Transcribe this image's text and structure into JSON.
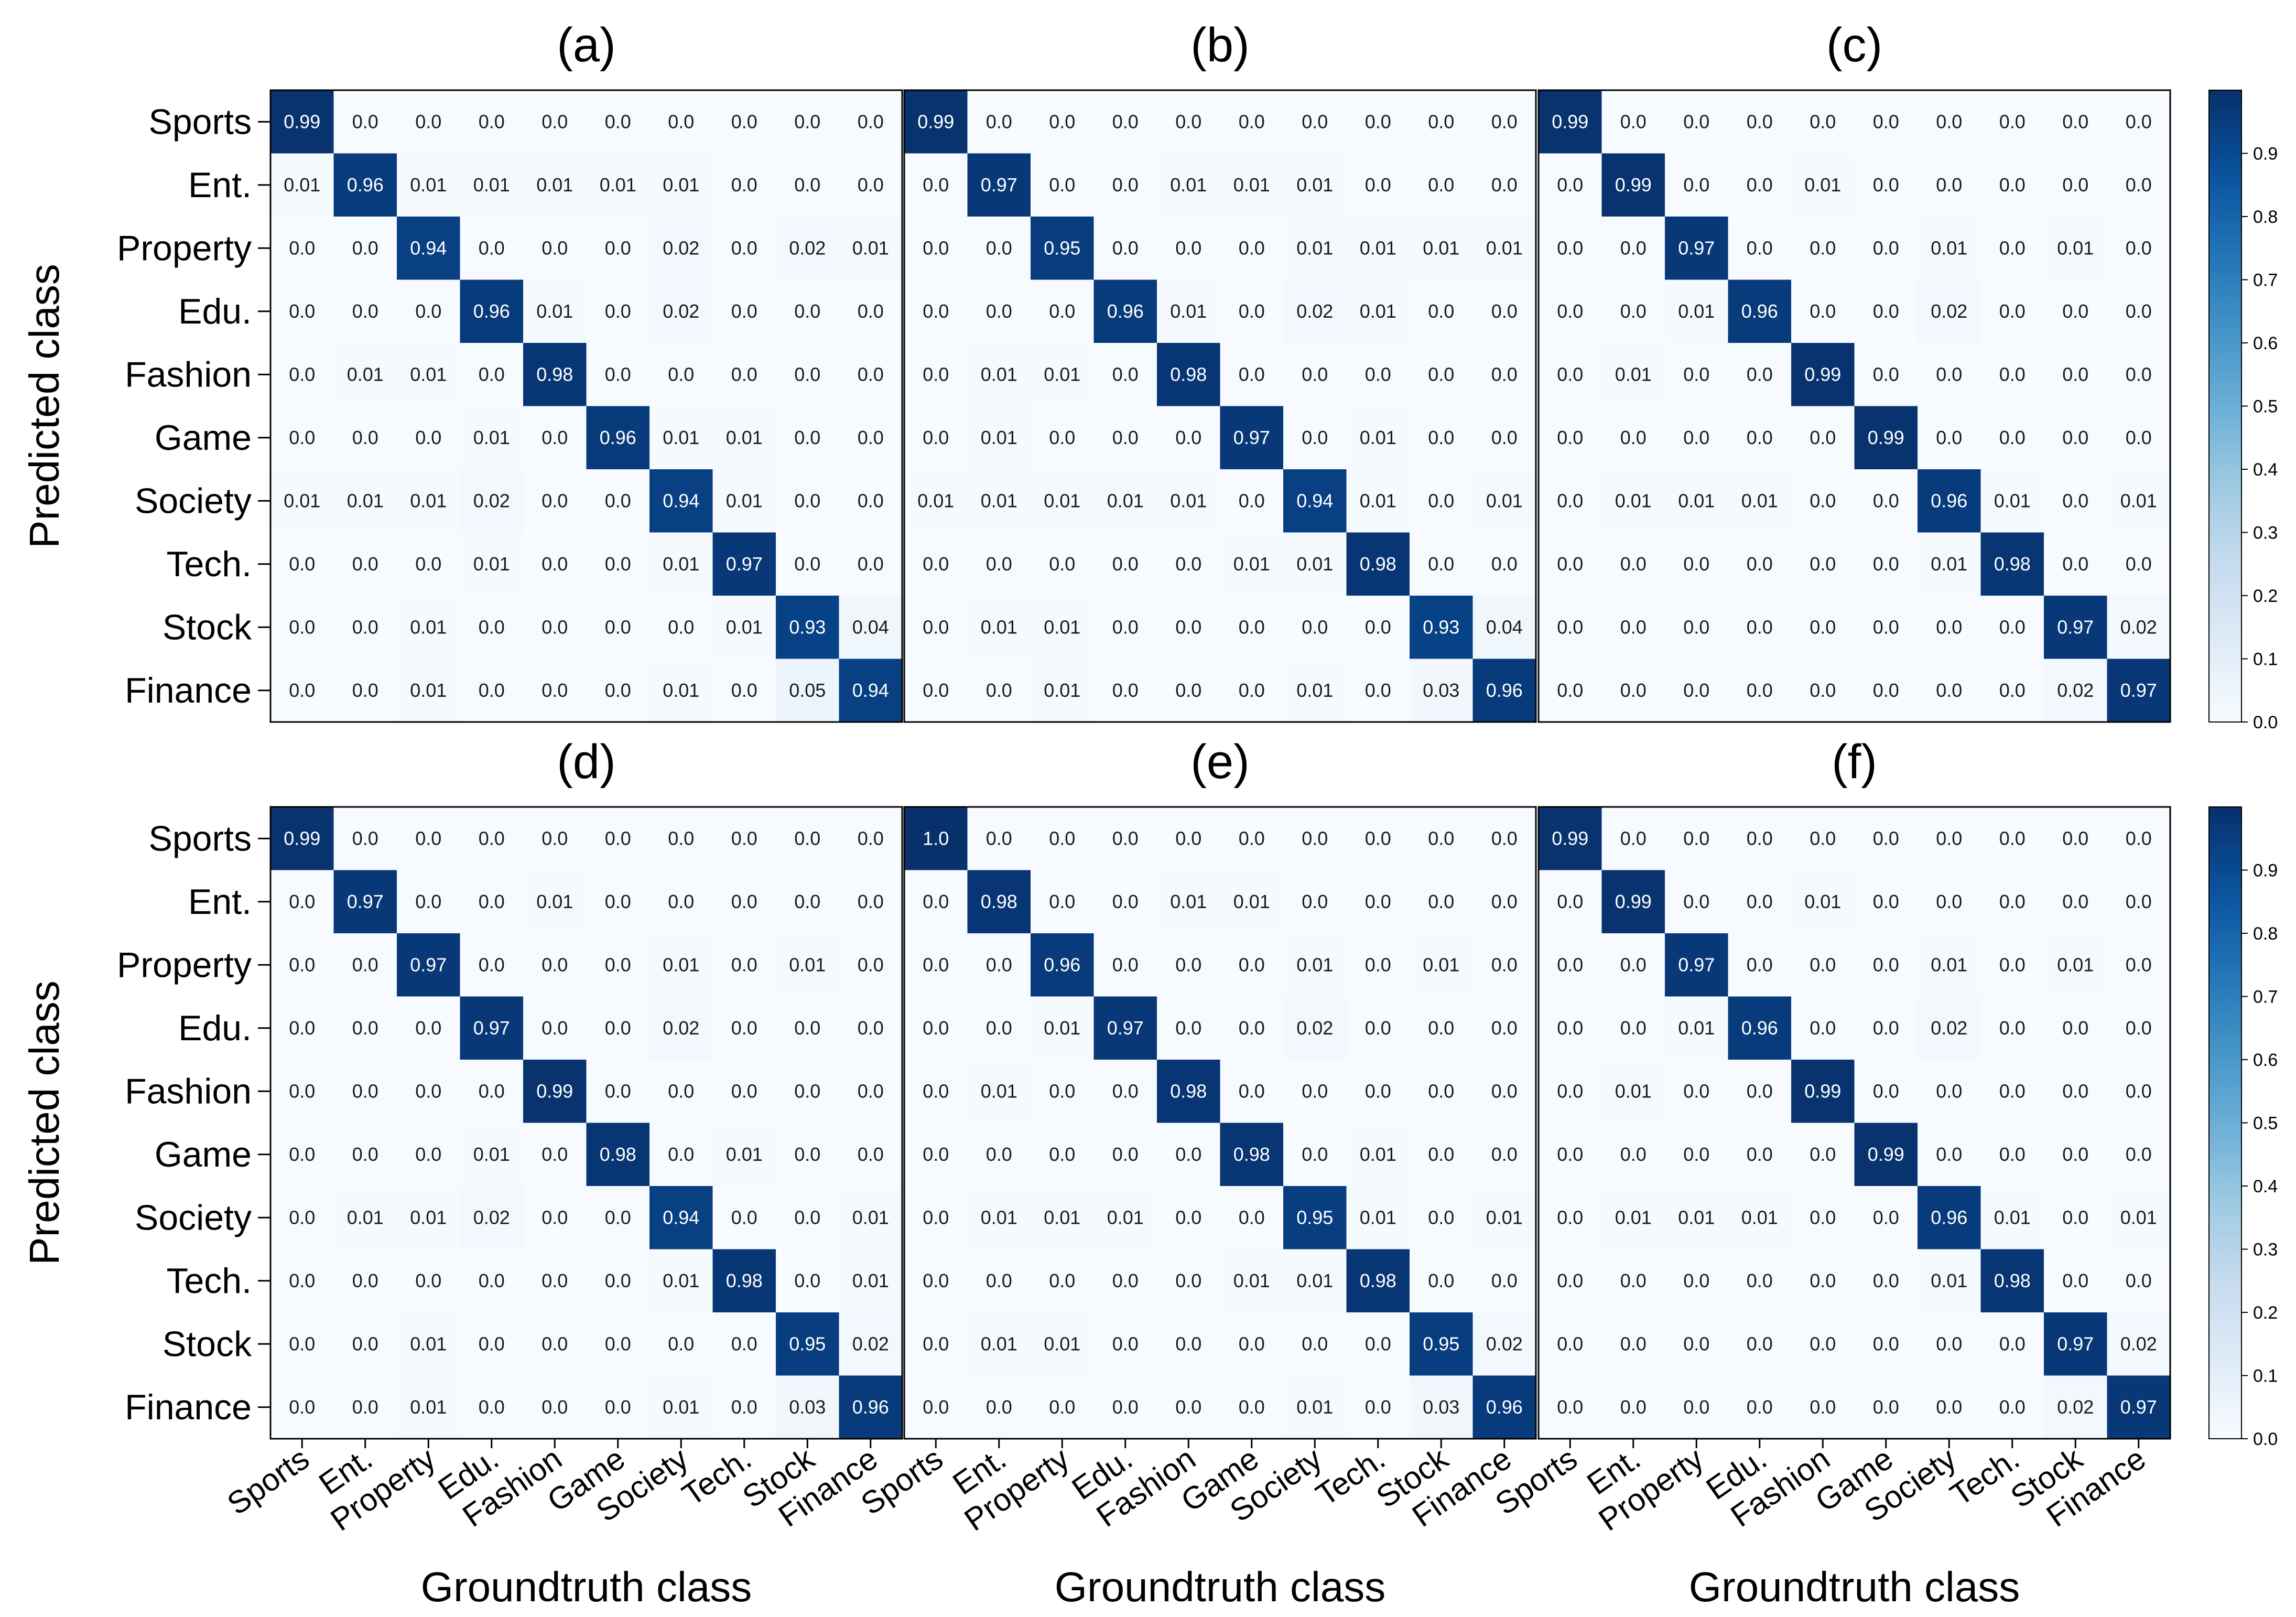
{
  "chart_data": {
    "type": "heatmap",
    "classes": [
      "Sports",
      "Ent.",
      "Property",
      "Edu.",
      "Fashion",
      "Game",
      "Society",
      "Tech.",
      "Stock",
      "Finance"
    ],
    "ylabel": "Predicted class",
    "xlabel": "Groundtruth class",
    "colorbar": {
      "range": [
        0.0,
        1.0
      ],
      "ticks": [
        "0.0",
        "0.1",
        "0.2",
        "0.3",
        "0.4",
        "0.5",
        "0.6",
        "0.7",
        "0.8",
        "0.9"
      ]
    },
    "colormap": {
      "low": "#f7fbff",
      "mid": "#6baed6",
      "high": "#08306b"
    },
    "panels": [
      {
        "title": "(a)",
        "matrix": [
          [
            "0.99",
            "0.0",
            "0.0",
            "0.0",
            "0.0",
            "0.0",
            "0.0",
            "0.0",
            "0.0",
            "0.0"
          ],
          [
            "0.01",
            "0.96",
            "0.01",
            "0.01",
            "0.01",
            "0.01",
            "0.01",
            "0.0",
            "0.0",
            "0.0"
          ],
          [
            "0.0",
            "0.0",
            "0.94",
            "0.0",
            "0.0",
            "0.0",
            "0.02",
            "0.0",
            "0.02",
            "0.01"
          ],
          [
            "0.0",
            "0.0",
            "0.0",
            "0.96",
            "0.01",
            "0.0",
            "0.02",
            "0.0",
            "0.0",
            "0.0"
          ],
          [
            "0.0",
            "0.01",
            "0.01",
            "0.0",
            "0.98",
            "0.0",
            "0.0",
            "0.0",
            "0.0",
            "0.0"
          ],
          [
            "0.0",
            "0.0",
            "0.0",
            "0.01",
            "0.0",
            "0.96",
            "0.01",
            "0.01",
            "0.0",
            "0.0"
          ],
          [
            "0.01",
            "0.01",
            "0.01",
            "0.02",
            "0.0",
            "0.0",
            "0.94",
            "0.01",
            "0.0",
            "0.0"
          ],
          [
            "0.0",
            "0.0",
            "0.0",
            "0.01",
            "0.0",
            "0.0",
            "0.01",
            "0.97",
            "0.0",
            "0.0"
          ],
          [
            "0.0",
            "0.0",
            "0.01",
            "0.0",
            "0.0",
            "0.0",
            "0.0",
            "0.01",
            "0.93",
            "0.04"
          ],
          [
            "0.0",
            "0.0",
            "0.01",
            "0.0",
            "0.0",
            "0.0",
            "0.01",
            "0.0",
            "0.05",
            "0.94"
          ]
        ]
      },
      {
        "title": "(b)",
        "matrix": [
          [
            "0.99",
            "0.0",
            "0.0",
            "0.0",
            "0.0",
            "0.0",
            "0.0",
            "0.0",
            "0.0",
            "0.0"
          ],
          [
            "0.0",
            "0.97",
            "0.0",
            "0.0",
            "0.01",
            "0.01",
            "0.01",
            "0.0",
            "0.0",
            "0.0"
          ],
          [
            "0.0",
            "0.0",
            "0.95",
            "0.0",
            "0.0",
            "0.0",
            "0.01",
            "0.01",
            "0.01",
            "0.01"
          ],
          [
            "0.0",
            "0.0",
            "0.0",
            "0.96",
            "0.01",
            "0.0",
            "0.02",
            "0.01",
            "0.0",
            "0.0"
          ],
          [
            "0.0",
            "0.01",
            "0.01",
            "0.0",
            "0.98",
            "0.0",
            "0.0",
            "0.0",
            "0.0",
            "0.0"
          ],
          [
            "0.0",
            "0.01",
            "0.0",
            "0.0",
            "0.0",
            "0.97",
            "0.0",
            "0.01",
            "0.0",
            "0.0"
          ],
          [
            "0.01",
            "0.01",
            "0.01",
            "0.01",
            "0.01",
            "0.0",
            "0.94",
            "0.01",
            "0.0",
            "0.01"
          ],
          [
            "0.0",
            "0.0",
            "0.0",
            "0.0",
            "0.0",
            "0.01",
            "0.01",
            "0.98",
            "0.0",
            "0.0"
          ],
          [
            "0.0",
            "0.01",
            "0.01",
            "0.0",
            "0.0",
            "0.0",
            "0.0",
            "0.0",
            "0.93",
            "0.04"
          ],
          [
            "0.0",
            "0.0",
            "0.01",
            "0.0",
            "0.0",
            "0.0",
            "0.01",
            "0.0",
            "0.03",
            "0.96"
          ]
        ]
      },
      {
        "title": "(c)",
        "matrix": [
          [
            "0.99",
            "0.0",
            "0.0",
            "0.0",
            "0.0",
            "0.0",
            "0.0",
            "0.0",
            "0.0",
            "0.0"
          ],
          [
            "0.0",
            "0.99",
            "0.0",
            "0.0",
            "0.01",
            "0.0",
            "0.0",
            "0.0",
            "0.0",
            "0.0"
          ],
          [
            "0.0",
            "0.0",
            "0.97",
            "0.0",
            "0.0",
            "0.0",
            "0.01",
            "0.0",
            "0.01",
            "0.0"
          ],
          [
            "0.0",
            "0.0",
            "0.01",
            "0.96",
            "0.0",
            "0.0",
            "0.02",
            "0.0",
            "0.0",
            "0.0"
          ],
          [
            "0.0",
            "0.01",
            "0.0",
            "0.0",
            "0.99",
            "0.0",
            "0.0",
            "0.0",
            "0.0",
            "0.0"
          ],
          [
            "0.0",
            "0.0",
            "0.0",
            "0.0",
            "0.0",
            "0.99",
            "0.0",
            "0.0",
            "0.0",
            "0.0"
          ],
          [
            "0.0",
            "0.01",
            "0.01",
            "0.01",
            "0.0",
            "0.0",
            "0.96",
            "0.01",
            "0.0",
            "0.01"
          ],
          [
            "0.0",
            "0.0",
            "0.0",
            "0.0",
            "0.0",
            "0.0",
            "0.01",
            "0.98",
            "0.0",
            "0.0"
          ],
          [
            "0.0",
            "0.0",
            "0.0",
            "0.0",
            "0.0",
            "0.0",
            "0.0",
            "0.0",
            "0.97",
            "0.02"
          ],
          [
            "0.0",
            "0.0",
            "0.0",
            "0.0",
            "0.0",
            "0.0",
            "0.0",
            "0.0",
            "0.02",
            "0.97"
          ]
        ]
      },
      {
        "title": "(d)",
        "matrix": [
          [
            "0.99",
            "0.0",
            "0.0",
            "0.0",
            "0.0",
            "0.0",
            "0.0",
            "0.0",
            "0.0",
            "0.0"
          ],
          [
            "0.0",
            "0.97",
            "0.0",
            "0.0",
            "0.01",
            "0.0",
            "0.0",
            "0.0",
            "0.0",
            "0.0"
          ],
          [
            "0.0",
            "0.0",
            "0.97",
            "0.0",
            "0.0",
            "0.0",
            "0.01",
            "0.0",
            "0.01",
            "0.0"
          ],
          [
            "0.0",
            "0.0",
            "0.0",
            "0.97",
            "0.0",
            "0.0",
            "0.02",
            "0.0",
            "0.0",
            "0.0"
          ],
          [
            "0.0",
            "0.0",
            "0.0",
            "0.0",
            "0.99",
            "0.0",
            "0.0",
            "0.0",
            "0.0",
            "0.0"
          ],
          [
            "0.0",
            "0.0",
            "0.0",
            "0.01",
            "0.0",
            "0.98",
            "0.0",
            "0.01",
            "0.0",
            "0.0"
          ],
          [
            "0.0",
            "0.01",
            "0.01",
            "0.02",
            "0.0",
            "0.0",
            "0.94",
            "0.0",
            "0.0",
            "0.01"
          ],
          [
            "0.0",
            "0.0",
            "0.0",
            "0.0",
            "0.0",
            "0.0",
            "0.01",
            "0.98",
            "0.0",
            "0.01"
          ],
          [
            "0.0",
            "0.0",
            "0.01",
            "0.0",
            "0.0",
            "0.0",
            "0.0",
            "0.0",
            "0.95",
            "0.02"
          ],
          [
            "0.0",
            "0.0",
            "0.01",
            "0.0",
            "0.0",
            "0.0",
            "0.01",
            "0.0",
            "0.03",
            "0.96"
          ]
        ]
      },
      {
        "title": "(e)",
        "matrix": [
          [
            "1.0",
            "0.0",
            "0.0",
            "0.0",
            "0.0",
            "0.0",
            "0.0",
            "0.0",
            "0.0",
            "0.0"
          ],
          [
            "0.0",
            "0.98",
            "0.0",
            "0.0",
            "0.01",
            "0.01",
            "0.0",
            "0.0",
            "0.0",
            "0.0"
          ],
          [
            "0.0",
            "0.0",
            "0.96",
            "0.0",
            "0.0",
            "0.0",
            "0.01",
            "0.0",
            "0.01",
            "0.0"
          ],
          [
            "0.0",
            "0.0",
            "0.01",
            "0.97",
            "0.0",
            "0.0",
            "0.02",
            "0.0",
            "0.0",
            "0.0"
          ],
          [
            "0.0",
            "0.01",
            "0.0",
            "0.0",
            "0.98",
            "0.0",
            "0.0",
            "0.0",
            "0.0",
            "0.0"
          ],
          [
            "0.0",
            "0.0",
            "0.0",
            "0.0",
            "0.0",
            "0.98",
            "0.0",
            "0.01",
            "0.0",
            "0.0"
          ],
          [
            "0.0",
            "0.01",
            "0.01",
            "0.01",
            "0.0",
            "0.0",
            "0.95",
            "0.01",
            "0.0",
            "0.01"
          ],
          [
            "0.0",
            "0.0",
            "0.0",
            "0.0",
            "0.0",
            "0.01",
            "0.01",
            "0.98",
            "0.0",
            "0.0"
          ],
          [
            "0.0",
            "0.01",
            "0.01",
            "0.0",
            "0.0",
            "0.0",
            "0.0",
            "0.0",
            "0.95",
            "0.02"
          ],
          [
            "0.0",
            "0.0",
            "0.0",
            "0.0",
            "0.0",
            "0.0",
            "0.01",
            "0.0",
            "0.03",
            "0.96"
          ]
        ]
      },
      {
        "title": "(f)",
        "matrix": [
          [
            "0.99",
            "0.0",
            "0.0",
            "0.0",
            "0.0",
            "0.0",
            "0.0",
            "0.0",
            "0.0",
            "0.0"
          ],
          [
            "0.0",
            "0.99",
            "0.0",
            "0.0",
            "0.01",
            "0.0",
            "0.0",
            "0.0",
            "0.0",
            "0.0"
          ],
          [
            "0.0",
            "0.0",
            "0.97",
            "0.0",
            "0.0",
            "0.0",
            "0.01",
            "0.0",
            "0.01",
            "0.0"
          ],
          [
            "0.0",
            "0.0",
            "0.01",
            "0.96",
            "0.0",
            "0.0",
            "0.02",
            "0.0",
            "0.0",
            "0.0"
          ],
          [
            "0.0",
            "0.01",
            "0.0",
            "0.0",
            "0.99",
            "0.0",
            "0.0",
            "0.0",
            "0.0",
            "0.0"
          ],
          [
            "0.0",
            "0.0",
            "0.0",
            "0.0",
            "0.0",
            "0.99",
            "0.0",
            "0.0",
            "0.0",
            "0.0"
          ],
          [
            "0.0",
            "0.01",
            "0.01",
            "0.01",
            "0.0",
            "0.0",
            "0.96",
            "0.01",
            "0.0",
            "0.01"
          ],
          [
            "0.0",
            "0.0",
            "0.0",
            "0.0",
            "0.0",
            "0.0",
            "0.01",
            "0.98",
            "0.0",
            "0.0"
          ],
          [
            "0.0",
            "0.0",
            "0.0",
            "0.0",
            "0.0",
            "0.0",
            "0.0",
            "0.0",
            "0.97",
            "0.02"
          ],
          [
            "0.0",
            "0.0",
            "0.0",
            "0.0",
            "0.0",
            "0.0",
            "0.0",
            "0.0",
            "0.02",
            "0.97"
          ]
        ]
      }
    ]
  }
}
